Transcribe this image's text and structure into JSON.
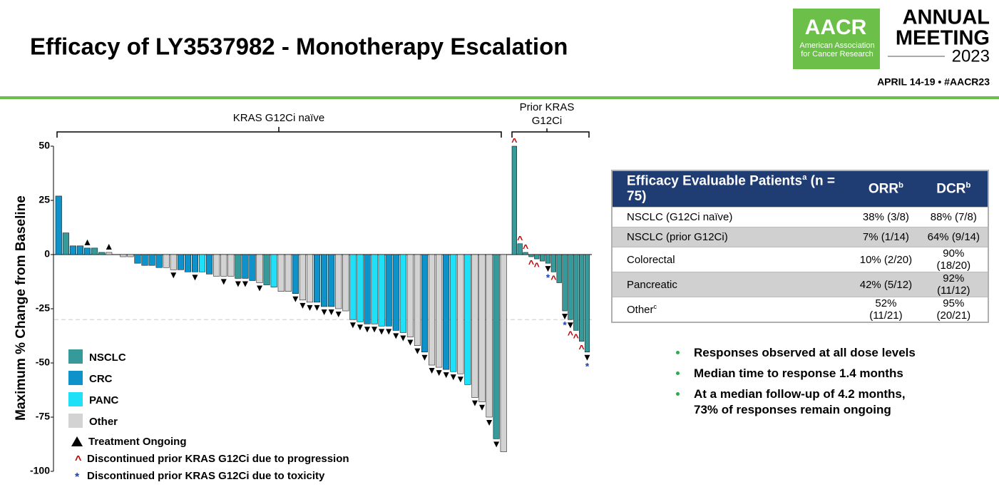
{
  "header": {
    "title": "Efficacy of LY3537982 - Monotherapy Escalation",
    "logo": "AACR",
    "logo_sub": "American Association for Cancer Research",
    "meeting_1": "ANNUAL",
    "meeting_2": "MEETING",
    "year": "2023",
    "dates": "APRIL 14-19 • #AACR23"
  },
  "chart_data": {
    "type": "waterfall",
    "y_label": "Maximum % Change from Baseline",
    "ylim": [
      -100,
      50
    ],
    "yticks": [
      50,
      25,
      0,
      -25,
      -50,
      -75,
      -100
    ],
    "reference_line": -30,
    "types": [
      {
        "name": "NSCLC",
        "color": "#36999a"
      },
      {
        "name": "CRC",
        "color": "#0d93c9"
      },
      {
        "name": "PANC",
        "color": "#1fe0f7"
      },
      {
        "name": "Other",
        "color": "#d3d3d3"
      }
    ],
    "marker_legend": [
      {
        "label": "Treatment Ongoing"
      },
      {
        "label": "Discontinued prior KRAS G12Ci due to progression",
        "symbol": "^",
        "color": "#c00000"
      },
      {
        "label": "Discontinued prior KRAS G12Ci due to toxicity",
        "symbol": "*",
        "color": "#1f3fbf"
      }
    ],
    "series": [
      {
        "name": "KRAS G12Ci naïve",
        "values": [
          27,
          10,
          4,
          4,
          3,
          3,
          1,
          1,
          0,
          -1,
          -1,
          -4,
          -5,
          -5,
          -6,
          -6,
          -7,
          -7,
          -8,
          -8,
          -8,
          -9,
          -10,
          -10,
          -10,
          -11,
          -11,
          -12,
          -13,
          -14,
          -15,
          -17,
          -17,
          -18,
          -21,
          -22,
          -22,
          -24,
          -24,
          -25,
          -26,
          -30,
          -31,
          -32,
          -32,
          -33,
          -33,
          -35,
          -36,
          -38,
          -42,
          -45,
          -51,
          -52,
          -53,
          -54,
          -55,
          -60,
          -66,
          -68,
          -75,
          -85,
          -91
        ],
        "kinds": [
          "CRC",
          "NSCLC",
          "CRC",
          "CRC",
          "CRC",
          "NSCLC",
          "NSCLC",
          "Other",
          "Other",
          "Other",
          "Other",
          "CRC",
          "CRC",
          "CRC",
          "CRC",
          "Other",
          "Other",
          "CRC",
          "CRC",
          "CRC",
          "PANC",
          "CRC",
          "Other",
          "Other",
          "Other",
          "NSCLC",
          "CRC",
          "CRC",
          "Other",
          "NSCLC",
          "PANC",
          "Other",
          "Other",
          "CRC",
          "Other",
          "Other",
          "CRC",
          "CRC",
          "CRC",
          "Other",
          "Other",
          "PANC",
          "PANC",
          "CRC",
          "PANC",
          "PANC",
          "CRC",
          "CRC",
          "PANC",
          "Other",
          "Other",
          "CRC",
          "Other",
          "Other",
          "CRC",
          "PANC",
          "Other",
          "PANC",
          "Other",
          "Other",
          "Other",
          "NSCLC",
          "Other"
        ],
        "markers": [
          null,
          null,
          null,
          null,
          [
            0
          ],
          null,
          null,
          [
            0
          ],
          null,
          null,
          null,
          null,
          null,
          null,
          null,
          null,
          [
            0
          ],
          null,
          null,
          [
            0
          ],
          null,
          null,
          null,
          [
            0
          ],
          null,
          [
            0
          ],
          [
            0
          ],
          null,
          [
            0
          ],
          null,
          null,
          null,
          null,
          [
            0
          ],
          [
            0
          ],
          [
            0
          ],
          [
            0
          ],
          [
            0
          ],
          [
            0
          ],
          [
            0
          ],
          null,
          [
            0
          ],
          [
            0
          ],
          [
            0
          ],
          [
            0
          ],
          [
            0
          ],
          [
            0
          ],
          [
            0
          ],
          [
            0
          ],
          [
            0
          ],
          [
            0
          ],
          [
            0
          ],
          [
            0
          ],
          [
            0
          ],
          [
            0
          ],
          [
            0
          ],
          [
            0
          ],
          null,
          [
            0
          ],
          [
            0
          ],
          [
            0
          ],
          [
            0
          ],
          null
        ]
      },
      {
        "name": "Prior KRAS G12Ci",
        "values": [
          50,
          5,
          1,
          -1,
          -2,
          -3,
          -4,
          -8,
          -13,
          -26,
          -30,
          -35,
          -40,
          -45
        ],
        "kinds": [
          "NSCLC",
          "NSCLC",
          "NSCLC",
          "NSCLC",
          "NSCLC",
          "NSCLC",
          "NSCLC",
          "NSCLC",
          "NSCLC",
          "NSCLC",
          "NSCLC",
          "NSCLC",
          "NSCLC",
          "NSCLC"
        ],
        "markers": [
          [
            1
          ],
          [
            1
          ],
          [
            1
          ],
          [
            1
          ],
          [
            1
          ],
          null,
          [
            0,
            2
          ],
          [
            1
          ],
          null,
          [
            0,
            2
          ],
          [
            0,
            1
          ],
          [
            1
          ],
          [
            1
          ],
          [
            0,
            2
          ]
        ]
      }
    ]
  },
  "table": {
    "header": [
      {
        "text": "Efficacy Evaluable Patients",
        "sup": "a",
        "after": " (n = 75)"
      },
      {
        "text": "ORR",
        "sup": "b"
      },
      {
        "text": "DCR",
        "sup": "b"
      }
    ],
    "rows": [
      [
        {
          "text": "NSCLC (G12Ci naïve)"
        },
        "38% (3/8)",
        "88% (7/8)"
      ],
      [
        {
          "text": "NSCLC (prior G12Ci)"
        },
        "7% (1/14)",
        "64% (9/14)"
      ],
      [
        {
          "text": "Colorectal"
        },
        "10% (2/20)",
        "90% (18/20)"
      ],
      [
        {
          "text": "Pancreatic"
        },
        "42% (5/12)",
        "92% (11/12)"
      ],
      [
        {
          "text": "Other",
          "sup": "c"
        },
        "52% (11/21)",
        "95% (20/21)"
      ]
    ]
  },
  "bullets": [
    "Responses observed at all dose levels",
    "Median time to response 1.4 months",
    "At a median follow-up of 4.2 months, 73% of responses remain ongoing"
  ]
}
